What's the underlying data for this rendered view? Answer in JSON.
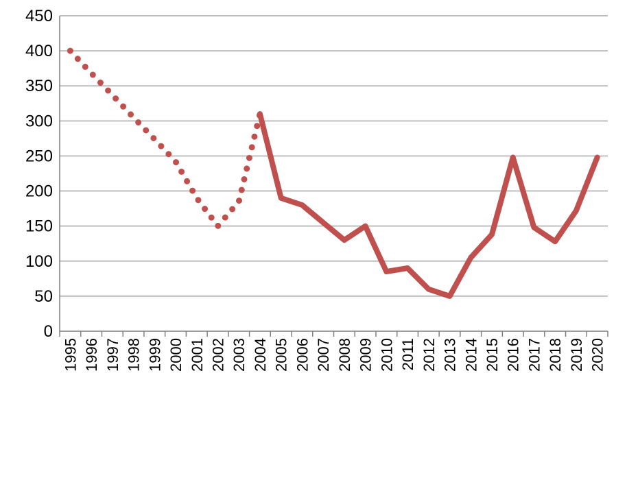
{
  "chart_data": {
    "type": "line",
    "title": "",
    "xlabel": "",
    "ylabel": "",
    "ylim": [
      0,
      450
    ],
    "y_ticks": [
      0,
      50,
      100,
      150,
      200,
      250,
      300,
      350,
      400,
      450
    ],
    "categories": [
      "1995",
      "1996",
      "1997",
      "1998",
      "1999",
      "2000",
      "2001",
      "2002",
      "2003",
      "2004",
      "2005",
      "2006",
      "2007",
      "2008",
      "2009",
      "2010",
      "2011",
      "2012",
      "2013",
      "2014",
      "2015",
      "2016",
      "2017",
      "2018",
      "2019",
      "2020"
    ],
    "grid": true,
    "legend": "none",
    "color": "#c0504d",
    "series": [
      {
        "style": "dotted",
        "values": [
          400,
          368,
          337,
          305,
          274,
          242,
          190,
          150,
          185,
          310,
          null,
          null,
          null,
          null,
          null,
          null,
          null,
          null,
          null,
          null,
          null,
          null,
          null,
          null,
          null,
          null
        ]
      },
      {
        "style": "solid",
        "values": [
          null,
          null,
          null,
          null,
          null,
          null,
          null,
          null,
          null,
          310,
          190,
          180,
          155,
          130,
          150,
          85,
          90,
          60,
          50,
          105,
          138,
          248,
          148,
          128,
          172,
          248
        ]
      }
    ]
  }
}
